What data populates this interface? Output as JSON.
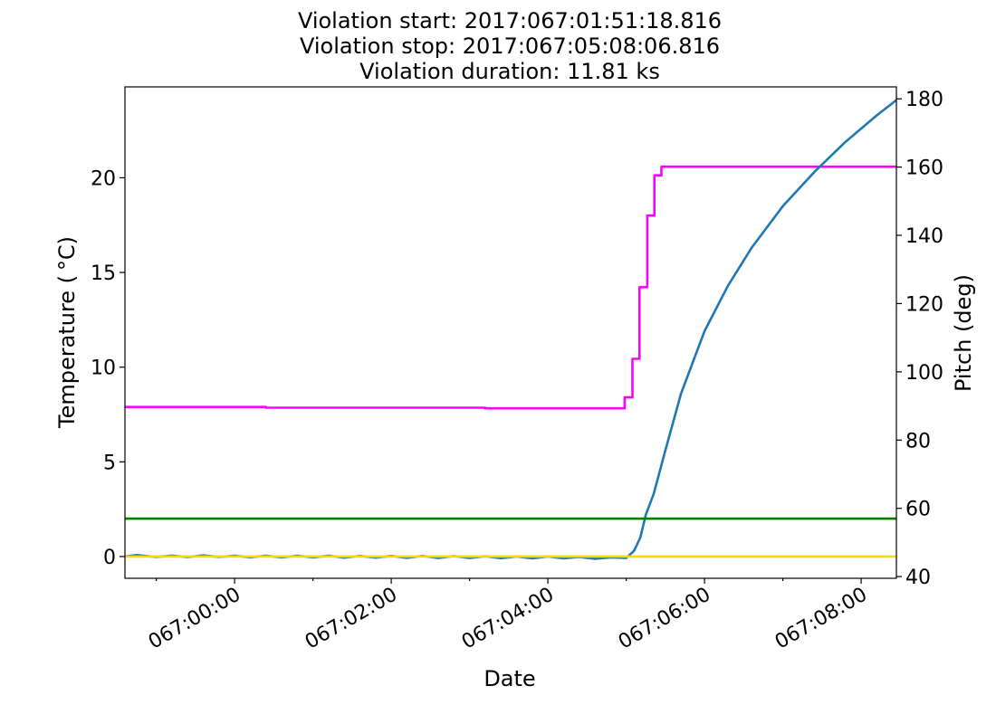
{
  "chart_data": {
    "type": "line",
    "title_lines": [
      "Violation start: 2017:067:01:51:18.816",
      "Violation stop: 2017:067:05:08:06.816",
      "Violation duration: 11.81 ks"
    ],
    "xlabel": "Date",
    "ylabel_left": "Temperature ($^\\circ$C)",
    "ylabel_left_display": "Temperature ( °C)",
    "ylabel_right": "Pitch (deg)",
    "x_range_hours": [
      -1.4,
      8.45
    ],
    "x_ticks": [
      {
        "hour": 0,
        "label": "067:00:00"
      },
      {
        "hour": 2,
        "label": "067:02:00"
      },
      {
        "hour": 4,
        "label": "067:04:00"
      },
      {
        "hour": 6,
        "label": "067:06:00"
      },
      {
        "hour": 8,
        "label": "067:08:00"
      }
    ],
    "y_left_range": [
      -1.15,
      24.8
    ],
    "y_left_ticks": [
      0,
      5,
      10,
      15,
      20
    ],
    "y_right_range": [
      39.5,
      183.5
    ],
    "y_right_ticks": [
      40,
      60,
      80,
      100,
      120,
      140,
      160,
      180
    ],
    "grid": false,
    "series": [
      {
        "axis": "right",
        "color": "#ff00ff",
        "step": true,
        "points": [
          [
            -1.4,
            89.7
          ],
          [
            0.4,
            89.7
          ],
          [
            0.4,
            89.5
          ],
          [
            3.2,
            89.5
          ],
          [
            3.2,
            89.3
          ],
          [
            4.98,
            89.3
          ],
          [
            4.98,
            92.5
          ],
          [
            5.08,
            92.5
          ],
          [
            5.08,
            103.8
          ],
          [
            5.17,
            103.8
          ],
          [
            5.17,
            124.8
          ],
          [
            5.27,
            124.8
          ],
          [
            5.27,
            145.8
          ],
          [
            5.36,
            145.8
          ],
          [
            5.36,
            157.6
          ],
          [
            5.45,
            157.6
          ],
          [
            5.45,
            160.1
          ],
          [
            8.45,
            160.1
          ]
        ]
      },
      {
        "axis": "left",
        "color": "#1f77b4",
        "step": false,
        "points": [
          [
            -1.4,
            0.0
          ],
          [
            -1.25,
            0.08
          ],
          [
            -1.0,
            -0.02
          ],
          [
            -0.8,
            0.05
          ],
          [
            -0.6,
            -0.03
          ],
          [
            -0.4,
            0.06
          ],
          [
            -0.2,
            -0.02
          ],
          [
            0.0,
            0.04
          ],
          [
            0.2,
            -0.04
          ],
          [
            0.4,
            0.04
          ],
          [
            0.6,
            -0.05
          ],
          [
            0.8,
            0.04
          ],
          [
            1.0,
            -0.05
          ],
          [
            1.2,
            0.04
          ],
          [
            1.4,
            -0.06
          ],
          [
            1.6,
            0.03
          ],
          [
            1.8,
            -0.06
          ],
          [
            2.0,
            0.03
          ],
          [
            2.2,
            -0.07
          ],
          [
            2.4,
            0.03
          ],
          [
            2.6,
            -0.08
          ],
          [
            2.8,
            0.02
          ],
          [
            3.0,
            -0.08
          ],
          [
            3.2,
            0.01
          ],
          [
            3.4,
            -0.09
          ],
          [
            3.6,
            0.0
          ],
          [
            3.8,
            -0.1
          ],
          [
            4.0,
            0.0
          ],
          [
            4.2,
            -0.1
          ],
          [
            4.4,
            -0.02
          ],
          [
            4.6,
            -0.12
          ],
          [
            4.8,
            -0.05
          ],
          [
            5.0,
            -0.08
          ],
          [
            5.1,
            0.3
          ],
          [
            5.18,
            1.0
          ],
          [
            5.25,
            2.2
          ],
          [
            5.35,
            3.3
          ],
          [
            5.5,
            5.6
          ],
          [
            5.7,
            8.6
          ],
          [
            6.0,
            11.9
          ],
          [
            6.3,
            14.3
          ],
          [
            6.6,
            16.3
          ],
          [
            7.0,
            18.5
          ],
          [
            7.4,
            20.3
          ],
          [
            7.8,
            21.9
          ],
          [
            8.2,
            23.3
          ],
          [
            8.45,
            24.1
          ]
        ]
      },
      {
        "axis": "left",
        "color": "#008000",
        "step": false,
        "points": [
          [
            -1.4,
            2.0
          ],
          [
            8.45,
            2.0
          ]
        ]
      },
      {
        "axis": "left",
        "color": "#ffd700",
        "step": false,
        "points": [
          [
            -1.4,
            0.0
          ],
          [
            8.45,
            0.0
          ]
        ]
      }
    ]
  }
}
